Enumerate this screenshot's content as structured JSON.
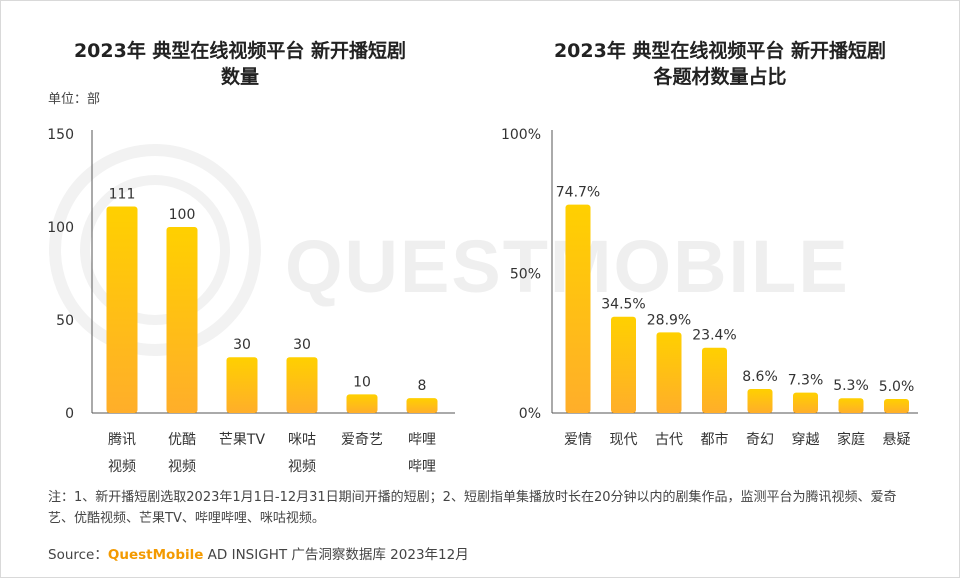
{
  "watermark": "QUESTMOBILE",
  "colors": {
    "bar_top": "#ffd000",
    "bar_bottom": "#ffae2a",
    "axis": "#555555",
    "text": "#333333",
    "brand": "#f39a00",
    "watermark": "#efefef"
  },
  "left": {
    "title_line1": "2023年 典型在线视频平台 新开播短剧",
    "title_line2": "数量",
    "unit": "单位：部"
  },
  "right": {
    "title_line1": "2023年 典型在线视频平台 新开播短剧",
    "title_line2": "各题材数量占比"
  },
  "note": "注：1、新开播短剧选取2023年1月1日-12月31日期间开播的短剧；2、短剧指单集播放时长在20分钟以内的剧集作品，监测平台为腾讯视频、爱奇艺、优酷视频、芒果TV、哔哩哔哩、咪咕视频。",
  "source": {
    "prefix": "Source：",
    "brand": "QuestMobile",
    "rest": " AD INSIGHT 广告洞察数据库 2023年12月"
  },
  "chart_data": [
    {
      "type": "bar",
      "title": "2023年 典型在线视频平台 新开播短剧数量",
      "ylabel": "单位：部",
      "categories": [
        [
          "腾讯",
          "视频"
        ],
        [
          "优酷",
          "视频"
        ],
        [
          "芒果TV"
        ],
        [
          "咪咕",
          "视频"
        ],
        [
          "爱奇艺"
        ],
        [
          "哔哩",
          "哔哩"
        ]
      ],
      "values": [
        111,
        100,
        30,
        30,
        10,
        8
      ],
      "data_labels": [
        "111",
        "100",
        "30",
        "30",
        "10",
        "8"
      ],
      "ylim": [
        0,
        150
      ],
      "yticks": [
        0,
        50,
        100,
        150
      ],
      "ytick_labels": [
        "0",
        "50",
        "100",
        "150"
      ],
      "grid": false
    },
    {
      "type": "bar",
      "title": "2023年 典型在线视频平台 新开播短剧各题材数量占比",
      "categories": [
        [
          "爱情"
        ],
        [
          "现代"
        ],
        [
          "古代"
        ],
        [
          "都市"
        ],
        [
          "奇幻"
        ],
        [
          "穿越"
        ],
        [
          "家庭"
        ],
        [
          "悬疑"
        ]
      ],
      "values": [
        74.7,
        34.5,
        28.9,
        23.4,
        8.6,
        7.3,
        5.3,
        5.0
      ],
      "data_labels": [
        "74.7%",
        "34.5%",
        "28.9%",
        "23.4%",
        "8.6%",
        "7.3%",
        "5.3%",
        "5.0%"
      ],
      "ylim": [
        0,
        100
      ],
      "yticks": [
        0,
        50,
        100
      ],
      "ytick_labels": [
        "0%",
        "50%",
        "100%"
      ],
      "grid": false
    }
  ]
}
